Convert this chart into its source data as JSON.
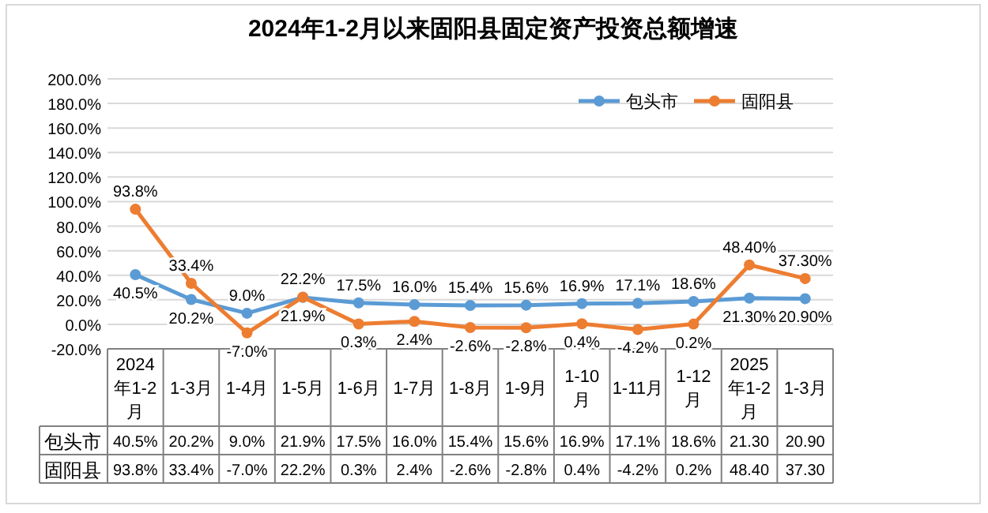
{
  "chart_data": {
    "type": "line",
    "title": "2024年1-2月以来固阳县固定资产投资总额增速",
    "categories": [
      "2024年1-2月",
      "1-3月",
      "1-4月",
      "1-5月",
      "1-6月",
      "1-7月",
      "1-8月",
      "1-9月",
      "1-10月",
      "1-11月",
      "1-12月",
      "2025年1-2月",
      "1-3月"
    ],
    "series": [
      {
        "name": "包头市",
        "color": "#5b9bd5",
        "values": [
          40.5,
          20.2,
          9.0,
          21.9,
          17.5,
          16.0,
          15.4,
          15.6,
          16.9,
          17.1,
          18.6,
          21.3,
          20.9
        ],
        "value_labels": [
          "40.5%",
          "20.2%",
          "9.0%",
          "21.9%",
          "17.5%",
          "16.0%",
          "15.4%",
          "15.6%",
          "16.9%",
          "17.1%",
          "18.6%",
          "21.30%",
          "20.90%"
        ]
      },
      {
        "name": "固阳县",
        "color": "#ed7d31",
        "values": [
          93.8,
          33.4,
          -7.0,
          22.2,
          0.3,
          2.4,
          -2.6,
          -2.8,
          0.4,
          -4.2,
          0.2,
          48.4,
          37.3
        ],
        "value_labels": [
          "93.8%",
          "33.4%",
          "-7.0%",
          "22.2%",
          "0.3%",
          "2.4%",
          "-2.6%",
          "-2.8%",
          "0.4%",
          "-4.2%",
          "0.2%",
          "48.40%",
          "37.30%"
        ]
      }
    ],
    "ylim": [
      -20,
      200
    ],
    "yticks": [
      {
        "value": -20,
        "label": "-20.0%"
      },
      {
        "value": 0,
        "label": "0.0%"
      },
      {
        "value": 20,
        "label": "20.0%"
      },
      {
        "value": 40,
        "label": "40.0%"
      },
      {
        "value": 60,
        "label": "60.0%"
      },
      {
        "value": 80,
        "label": "80.0%"
      },
      {
        "value": 100,
        "label": "100.0%"
      },
      {
        "value": 120,
        "label": "120.0%"
      },
      {
        "value": 140,
        "label": "140.0%"
      },
      {
        "value": 160,
        "label": "160.0%"
      },
      {
        "value": 180,
        "label": "180.0%"
      },
      {
        "value": 200,
        "label": "200.0%"
      }
    ],
    "grid": "y",
    "legend": "top right",
    "marker": "circle",
    "line_style": "solid",
    "annotations": [
      "40.5%",
      "20.2%",
      "9.0%",
      "21.9%",
      "17.5%",
      "16.0%",
      "15.4%",
      "15.6%",
      "16.9%",
      "17.1%",
      "18.6%",
      "21.30",
      "20.90",
      "93.8%",
      "33.4%",
      "-7.0%",
      "22.2%",
      "0.3%",
      "2.4%",
      "-2.6%",
      "-2.8%",
      "0.4%",
      "-4.2%",
      "0.2%",
      "48.40",
      "37.30"
    ]
  }
}
